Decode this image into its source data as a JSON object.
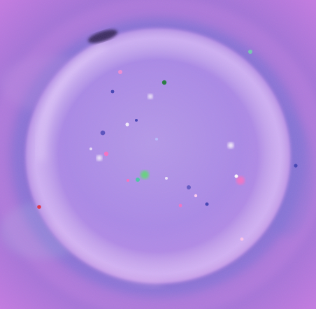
{
  "image": {
    "subject": "colorful-fluid-droplet",
    "colors": {
      "background": "#8a6fd0",
      "background_edge": "#c27ae0",
      "droplet_fill": "#a88ae6",
      "droplet_rim": "#c59be8",
      "highlight": "#ffffff",
      "sparkle_green": "#57e06b",
      "sparkle_pink": "#ff6fbf",
      "sparkle_blue": "#3c3fb0",
      "smudge": "#2f2350"
    }
  }
}
